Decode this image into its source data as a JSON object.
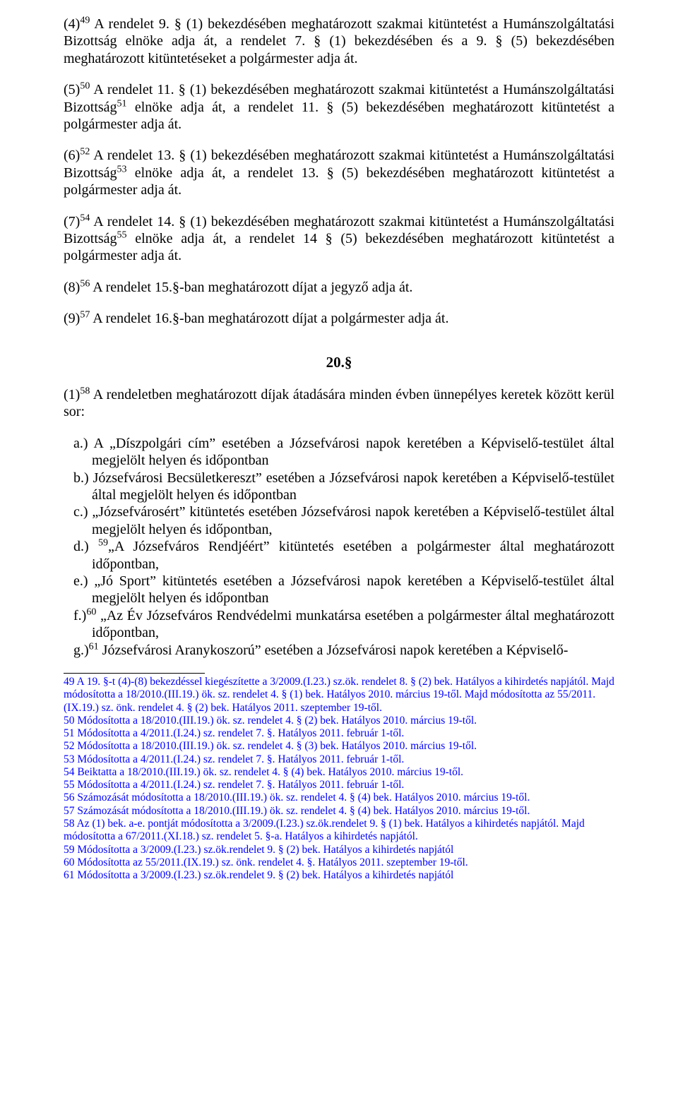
{
  "paragraphs": {
    "p4": {
      "sup": "49",
      "text": "(4)__SUP__ A rendelet 9. § (1) bekezdésében meghatározott szakmai kitüntetést a Humánszolgáltatási Bizottság elnöke adja át, a rendelet 7. § (1) bekezdésében és a 9. § (5) bekezdésében meghatározott kitüntetéseket a polgármester adja át."
    },
    "p5": {
      "sup1": "50",
      "sup2": "51",
      "text": "(5)__SUP1__ A rendelet 11. § (1) bekezdésében meghatározott szakmai kitüntetést a Humánszolgáltatási Bizottság__SUP2__ elnöke adja át, a rendelet 11. § (5) bekezdésében meghatározott kitüntetést a polgármester adja át."
    },
    "p6": {
      "sup1": "52",
      "sup2": "53",
      "text": "(6)__SUP1__ A rendelet 13. § (1) bekezdésében meghatározott szakmai kitüntetést a Humánszolgáltatási Bizottság__SUP2__ elnöke adja át, a rendelet 13. § (5) bekezdésében meghatározott kitüntetést a polgármester adja át."
    },
    "p7": {
      "sup1": "54",
      "sup2": "55",
      "text": "(7)__SUP1__ A rendelet 14. § (1) bekezdésében meghatározott szakmai kitüntetést a Humánszolgáltatási Bizottság__SUP2__ elnöke adja át, a rendelet 14 § (5) bekezdésében meghatározott kitüntetést a polgármester adja át."
    },
    "p8": {
      "sup": "56",
      "text": "(8)__SUP__ A rendelet 15.§-ban meghatározott díjat a jegyző adja át."
    },
    "p9": {
      "sup": "57",
      "text": "(9)__SUP__ A rendelet 16.§-ban meghatározott díjat a polgármester adja át."
    }
  },
  "section20": "20.§",
  "intro": {
    "sup": "58",
    "text": "(1)__SUP__ A rendeletben meghatározott díjak átadására minden évben ünnepélyes keretek között kerül sor:"
  },
  "list": {
    "a": "a.) A „Díszpolgári cím” esetében a Józsefvárosi napok keretében a Képviselő-testület által megjelölt helyen és időpontban",
    "b": "b.) Józsefvárosi Becsületkereszt” esetében a Józsefvárosi napok keretében a Képviselő-testület által megjelölt helyen és időpontban",
    "c": "c.) „Józsefvárosért” kitüntetés esetében Józsefvárosi napok keretében a Képviselő-testület által megjelölt helyen és időpontban,",
    "d": {
      "sup": "59",
      "text": "d.) __SUP__„A Józsefváros Rendjéért” kitüntetés esetében a polgármester által meghatározott időpontban,"
    },
    "e": "e.) „Jó Sport” kitüntetés esetében a Józsefvárosi napok keretében a Képviselő-testület által megjelölt helyen és időpontban",
    "f": {
      "sup": "60",
      "text": "f.)__SUP__ „Az Év Józsefváros Rendvédelmi munkatársa esetében a polgármester által meghatározott időpontban,"
    },
    "g": {
      "sup": "61",
      "text": "g.)__SUP__ Józsefvárosi Aranykoszorú” esetében a Józsefvárosi napok keretében a Képviselő-"
    }
  },
  "footnotes": [
    "49 A 19. §-t (4)-(8) bekezdéssel kiegészítette a 3/2009.(I.23.) sz.ök. rendelet 8. § (2) bek. Hatályos a kihirdetés napjától. Majd módosította a 18/2010.(III.19.) ök. sz. rendelet 4. § (1) bek. Hatályos 2010. március 19-től. Majd módosította az 55/2011.(IX.19.) sz. önk. rendelet 4. § (2) bek. Hatályos 2011. szeptember 19-től.",
    "50 Módosította a 18/2010.(III.19.) ök. sz. rendelet 4. § (2) bek. Hatályos 2010. március 19-től.",
    "51 Módosította a 4/2011.(I.24.) sz. rendelet 7. §. Hatályos 2011. február 1-től.",
    "52 Módosította a 18/2010.(III.19.) ök. sz. rendelet 4. § (3) bek. Hatályos 2010. március 19-től.",
    "53 Módosította a 4/2011.(I.24.) sz. rendelet 7. §. Hatályos 2011. február 1-től.",
    "54 Beiktatta a 18/2010.(III.19.) ök. sz. rendelet 4. § (4) bek. Hatályos 2010. március 19-től.",
    "55 Módosította a 4/2011.(I.24.) sz. rendelet 7. §. Hatályos 2011. február 1-től.",
    "56 Számozását módosította a 18/2010.(III.19.) ök. sz. rendelet 4. § (4) bek. Hatályos 2010. március 19-től.",
    "57 Számozását módosította a 18/2010.(III.19.) ök. sz. rendelet 4. § (4) bek. Hatályos 2010. március 19-től.",
    "58 Az (1) bek. a-e. pontját módosította a 3/2009.(I.23.) sz.ök.rendelet 9. § (1) bek. Hatályos a kihirdetés napjától. Majd módosította a 67/2011.(XI.18.) sz. rendelet 5. §-a. Hatályos a kihirdetés napjától.",
    "59 Módosította a 3/2009.(I.23.) sz.ök.rendelet 9. § (2) bek. Hatályos a kihirdetés napjától",
    "60 Módosította az 55/2011.(IX.19.) sz. önk. rendelet 4. §. Hatályos 2011. szeptember 19-től.",
    "61 Módosította a 3/2009.(I.23.) sz.ök.rendelet 9. § (2) bek. Hatályos a kihirdetés napjától"
  ]
}
